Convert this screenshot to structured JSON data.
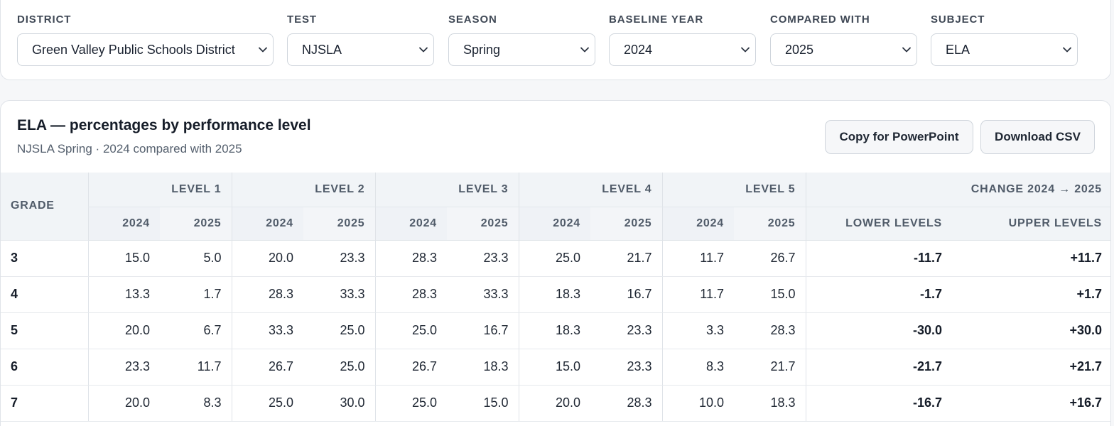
{
  "filters": [
    {
      "label": "DISTRICT",
      "value": "Green Valley Public Schools District"
    },
    {
      "label": "TEST",
      "value": "NJSLA"
    },
    {
      "label": "SEASON",
      "value": "Spring"
    },
    {
      "label": "BASELINE YEAR",
      "value": "2024"
    },
    {
      "label": "COMPARED WITH",
      "value": "2025"
    },
    {
      "label": "SUBJECT",
      "value": "ELA"
    }
  ],
  "card": {
    "title": "ELA — percentages by performance level",
    "subtitle": "NJSLA Spring · 2024 compared with 2025",
    "copy_button": "Copy for PowerPoint",
    "csv_button": "Download CSV"
  },
  "table": {
    "grade_header": "GRADE",
    "levels": [
      "LEVEL 1",
      "LEVEL 2",
      "LEVEL 3",
      "LEVEL 4",
      "LEVEL 5"
    ],
    "change_header": "CHANGE 2024 → 2025",
    "year_a": "2024",
    "year_b": "2025",
    "lower_header": "LOWER LEVELS",
    "upper_header": "UPPER LEVELS",
    "rows": [
      {
        "grade": "3",
        "values": [
          "15.0",
          "5.0",
          "20.0",
          "23.3",
          "28.3",
          "23.3",
          "25.0",
          "21.7",
          "11.7",
          "26.7"
        ],
        "lower": "-11.7",
        "upper": "+11.7"
      },
      {
        "grade": "4",
        "values": [
          "13.3",
          "1.7",
          "28.3",
          "33.3",
          "28.3",
          "33.3",
          "18.3",
          "16.7",
          "11.7",
          "15.0"
        ],
        "lower": "-1.7",
        "upper": "+1.7"
      },
      {
        "grade": "5",
        "values": [
          "20.0",
          "6.7",
          "33.3",
          "25.0",
          "25.0",
          "16.7",
          "18.3",
          "23.3",
          "3.3",
          "28.3"
        ],
        "lower": "-30.0",
        "upper": "+30.0"
      },
      {
        "grade": "6",
        "values": [
          "23.3",
          "11.7",
          "26.7",
          "25.0",
          "26.7",
          "18.3",
          "15.0",
          "23.3",
          "8.3",
          "21.7"
        ],
        "lower": "-21.7",
        "upper": "+21.7"
      },
      {
        "grade": "7",
        "values": [
          "20.0",
          "8.3",
          "25.0",
          "30.0",
          "25.0",
          "15.0",
          "20.0",
          "28.3",
          "10.0",
          "18.3"
        ],
        "lower": "-16.7",
        "upper": "+16.7"
      }
    ]
  }
}
